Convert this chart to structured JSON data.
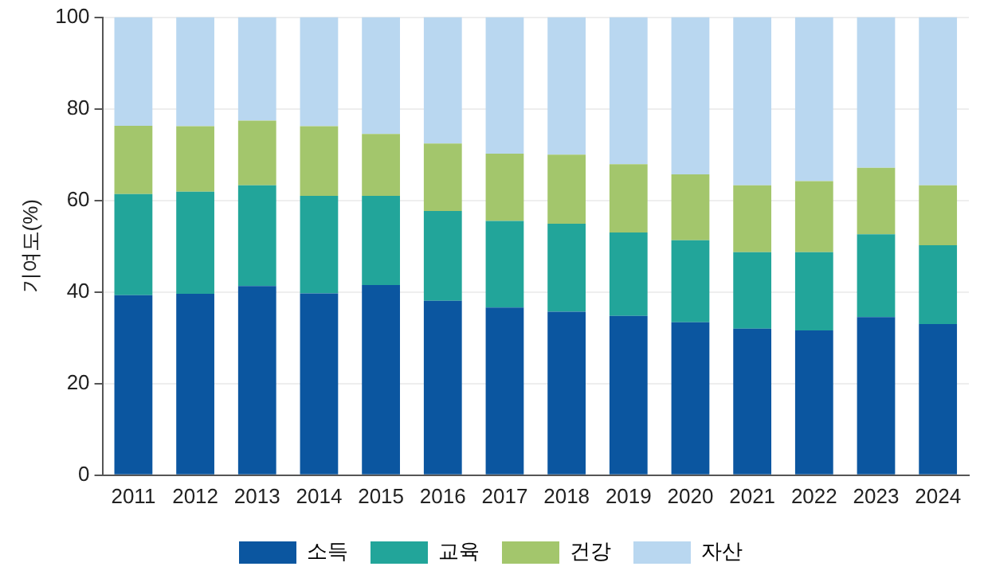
{
  "chart_data": {
    "type": "bar",
    "stacked": true,
    "ylabel": "기여도(%)",
    "categories": [
      "2011",
      "2012",
      "2013",
      "2014",
      "2015",
      "2016",
      "2017",
      "2018",
      "2019",
      "2020",
      "2021",
      "2022",
      "2023",
      "2024"
    ],
    "series": [
      {
        "name": "소득",
        "color": "#0b56a0",
        "values": [
          39.3,
          39.6,
          41.3,
          39.7,
          41.5,
          38.1,
          36.6,
          35.7,
          34.8,
          33.4,
          32.0,
          31.6,
          34.5,
          33.0
        ]
      },
      {
        "name": "교육",
        "color": "#22a59a",
        "values": [
          22.1,
          22.3,
          22.0,
          21.3,
          19.5,
          19.6,
          18.9,
          19.2,
          18.2,
          17.9,
          16.7,
          17.1,
          18.1,
          17.2
        ]
      },
      {
        "name": "건강",
        "color": "#a3c66c",
        "values": [
          14.9,
          14.3,
          14.1,
          15.2,
          13.5,
          14.7,
          14.7,
          15.1,
          14.9,
          14.4,
          14.6,
          15.5,
          14.5,
          13.1
        ]
      },
      {
        "name": "자산",
        "color": "#b9d7f0",
        "values": [
          23.7,
          23.8,
          22.6,
          23.8,
          25.5,
          27.6,
          29.8,
          30.0,
          32.1,
          34.3,
          36.7,
          35.8,
          32.9,
          36.7
        ]
      }
    ],
    "ylim": [
      0,
      100
    ],
    "yticks": [
      0,
      20,
      40,
      60,
      80,
      100
    ],
    "grid": "y",
    "legend": "bottom"
  }
}
